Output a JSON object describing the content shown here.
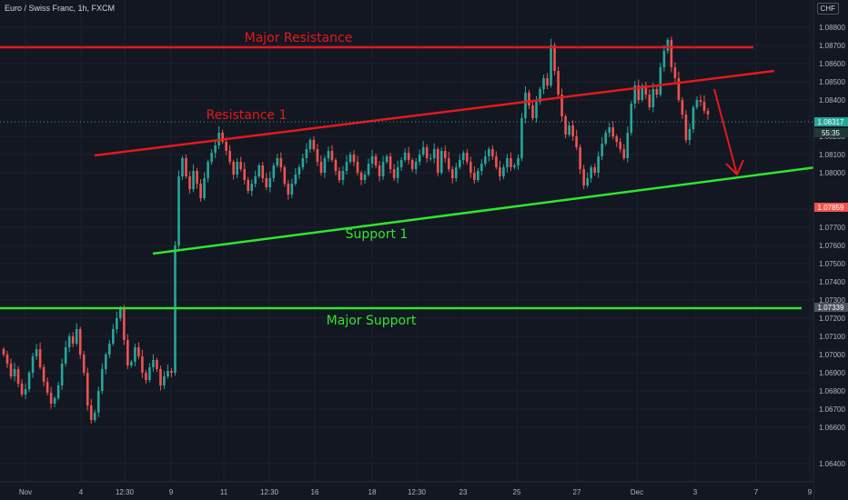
{
  "header": {
    "title": "Euro / Swiss Franc, 1h, FXCM",
    "currency": "CHF"
  },
  "price_axis": {
    "ticks": [
      "1.08800",
      "1.08700",
      "1.08600",
      "1.08500",
      "1.08400",
      "1.08200",
      "1.08100",
      "1.08000",
      "1.07800",
      "1.07700",
      "1.07600",
      "1.07500",
      "1.07400",
      "1.07300",
      "1.07200",
      "1.07100",
      "1.07000",
      "1.06900",
      "1.06800",
      "1.06700",
      "1.06600",
      "1.06400"
    ],
    "current_price": "1.08317",
    "countdown": "55:35",
    "level_tag_red": "1.07859",
    "level_tag_gray": "1.07339"
  },
  "time_axis": {
    "labels": [
      "Nov",
      "4",
      "12:30",
      "9",
      "11",
      "12:30",
      "16",
      "18",
      "12:30",
      "23",
      "25",
      "27",
      "Dec",
      "3",
      "7",
      "9"
    ]
  },
  "annotations": {
    "major_resistance": "Major Resistance",
    "resistance_1": "Resistance 1",
    "support_1": "Support 1",
    "major_support": "Major Support"
  },
  "colors": {
    "background": "#131722",
    "up": "#26a69a",
    "down": "#ef5350",
    "resistance": "#e3191c",
    "support": "#2ee62e"
  },
  "chart_data": {
    "type": "candlestick",
    "symbol": "EUR/CHF",
    "timeframe": "1h",
    "ylim": [
      1.0637,
      1.0893
    ],
    "close": [
      1.07,
      1.0695,
      1.0688,
      1.0692,
      1.0684,
      1.0678,
      1.0681,
      1.069,
      1.0699,
      1.0703,
      1.0693,
      1.0685,
      1.0679,
      1.0673,
      1.0676,
      1.0683,
      1.0695,
      1.0704,
      1.071,
      1.0706,
      1.0714,
      1.07,
      1.069,
      1.0672,
      1.0664,
      1.0668,
      1.068,
      1.0692,
      1.07,
      1.0706,
      1.0714,
      1.072,
      1.0725,
      1.0708,
      1.0694,
      1.0696,
      1.0704,
      1.0699,
      1.069,
      1.0686,
      1.0693,
      1.0697,
      1.0692,
      1.0683,
      1.0688,
      1.0691,
      1.069,
      1.076,
      1.0798,
      1.0808,
      1.0798,
      1.0791,
      1.0801,
      1.0794,
      1.0786,
      1.0797,
      1.0806,
      1.0811,
      1.0815,
      1.0822,
      1.0817,
      1.0812,
      1.0806,
      1.0799,
      1.0806,
      1.0802,
      1.0796,
      1.079,
      1.0794,
      1.0798,
      1.0804,
      1.0797,
      1.0792,
      1.0797,
      1.0804,
      1.0808,
      1.0803,
      1.0794,
      1.0788,
      1.0794,
      1.0799,
      1.0803,
      1.0808,
      1.0813,
      1.0818,
      1.0813,
      1.0806,
      1.08,
      1.0808,
      1.0812,
      1.0807,
      1.0801,
      1.0796,
      1.0801,
      1.0806,
      1.081,
      1.0806,
      1.08,
      1.0796,
      1.0799,
      1.0805,
      1.0809,
      1.0804,
      1.0798,
      1.0806,
      1.0809,
      1.0802,
      1.0797,
      1.0803,
      1.0807,
      1.0811,
      1.0807,
      1.0802,
      1.0806,
      1.081,
      1.0814,
      1.0808,
      1.0808,
      1.0813,
      1.08,
      1.0812,
      1.0808,
      1.0802,
      1.0797,
      1.0803,
      1.0807,
      1.0811,
      1.0806,
      1.08,
      1.0796,
      1.0801,
      1.0805,
      1.0809,
      1.0813,
      1.0809,
      1.0803,
      1.0798,
      1.0803,
      1.0808,
      1.0803,
      1.0804,
      1.0808,
      1.083,
      1.0844,
      1.0837,
      1.083,
      1.0839,
      1.0846,
      1.0852,
      1.0848,
      1.087,
      1.0856,
      1.0843,
      1.0831,
      1.0821,
      1.0826,
      1.082,
      1.0814,
      1.0802,
      1.0793,
      1.0797,
      1.0803,
      1.08,
      1.0809,
      1.0816,
      1.0822,
      1.0825,
      1.082,
      1.0817,
      1.0813,
      1.0808,
      1.0822,
      1.0838,
      1.0848,
      1.084,
      1.0848,
      1.0843,
      1.0836,
      1.0846,
      1.0843,
      1.0858,
      1.0867,
      1.0873,
      1.0858,
      1.0852,
      1.084,
      1.0832,
      1.0818,
      1.0824,
      1.0836,
      1.084,
      1.0839,
      1.0834,
      1.0832
    ]
  }
}
